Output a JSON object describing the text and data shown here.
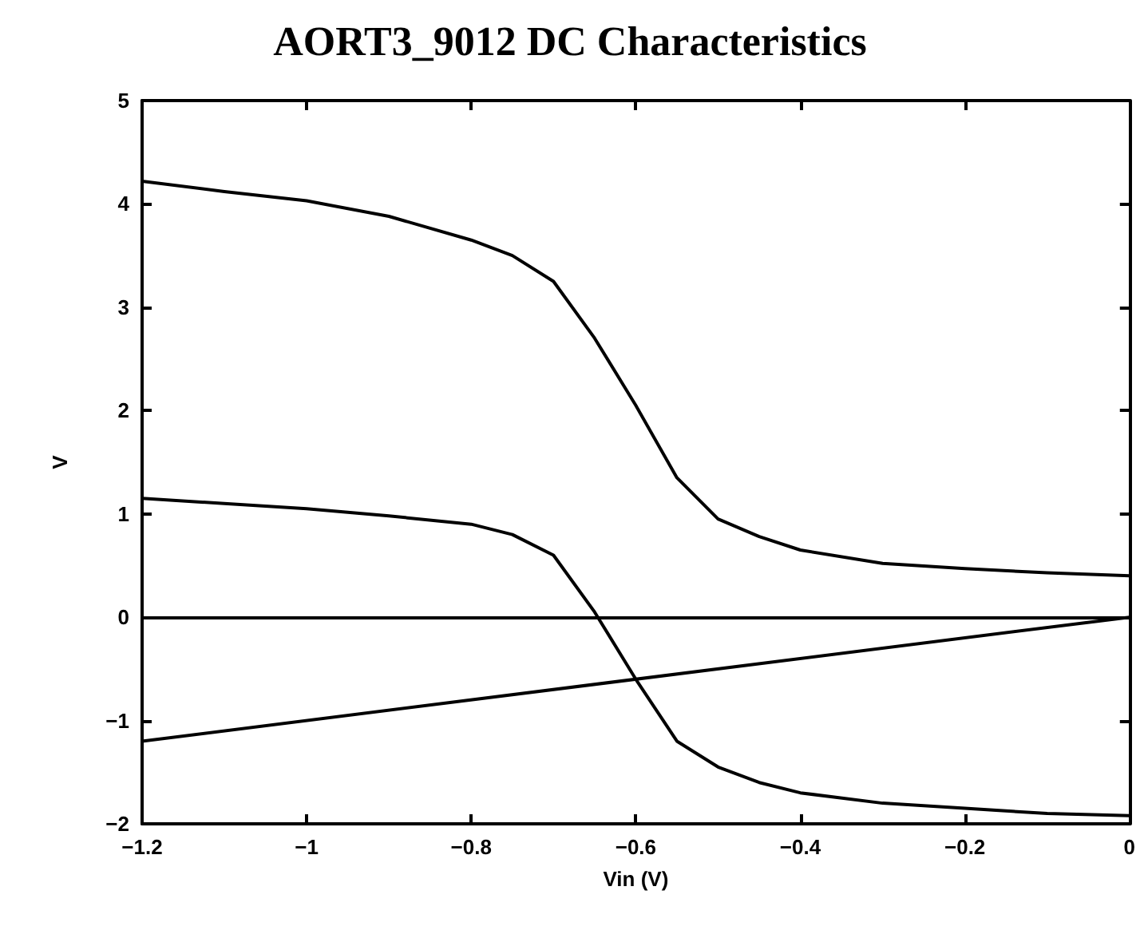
{
  "chart_data": {
    "type": "line",
    "title": "AORT3_9012 DC Characteristics",
    "xlabel": "Vin (V)",
    "ylabel": "V",
    "xlim": [
      -1.2,
      0
    ],
    "xticks": [
      -1.2,
      -1,
      -0.8,
      -0.6,
      -0.4,
      -0.2,
      0
    ],
    "ylim": [
      -2,
      5
    ],
    "yticks": [
      -2,
      -1,
      0,
      1,
      2,
      3,
      4,
      5
    ],
    "grid": false,
    "marker": "none",
    "line_style": "solid",
    "ref_lines": [
      {
        "axis": "y",
        "value": 0,
        "color": "#000000"
      }
    ],
    "series": [
      {
        "color": "#000000",
        "x": [
          -1.2,
          -1.1,
          -1.0,
          -0.9,
          -0.8,
          -0.75,
          -0.7,
          -0.65,
          -0.6,
          -0.55,
          -0.5,
          -0.45,
          -0.4,
          -0.3,
          -0.2,
          -0.1,
          0
        ],
        "values": [
          4.22,
          4.12,
          4.03,
          3.88,
          3.65,
          3.5,
          3.25,
          2.7,
          2.05,
          1.35,
          0.95,
          0.78,
          0.65,
          0.52,
          0.47,
          0.43,
          0.4
        ]
      },
      {
        "color": "#000000",
        "x": [
          -1.2,
          -1.1,
          -1.0,
          -0.9,
          -0.8,
          -0.75,
          -0.7,
          -0.65,
          -0.6,
          -0.55,
          -0.5,
          -0.45,
          -0.4,
          -0.3,
          -0.2,
          -0.1,
          0
        ],
        "values": [
          1.15,
          1.1,
          1.05,
          0.98,
          0.9,
          0.8,
          0.6,
          0.05,
          -0.6,
          -1.2,
          -1.45,
          -1.6,
          -1.7,
          -1.8,
          -1.85,
          -1.9,
          -1.92
        ]
      },
      {
        "color": "#000000",
        "x": [
          -1.2,
          0
        ],
        "values": [
          -1.2,
          0
        ]
      }
    ]
  }
}
